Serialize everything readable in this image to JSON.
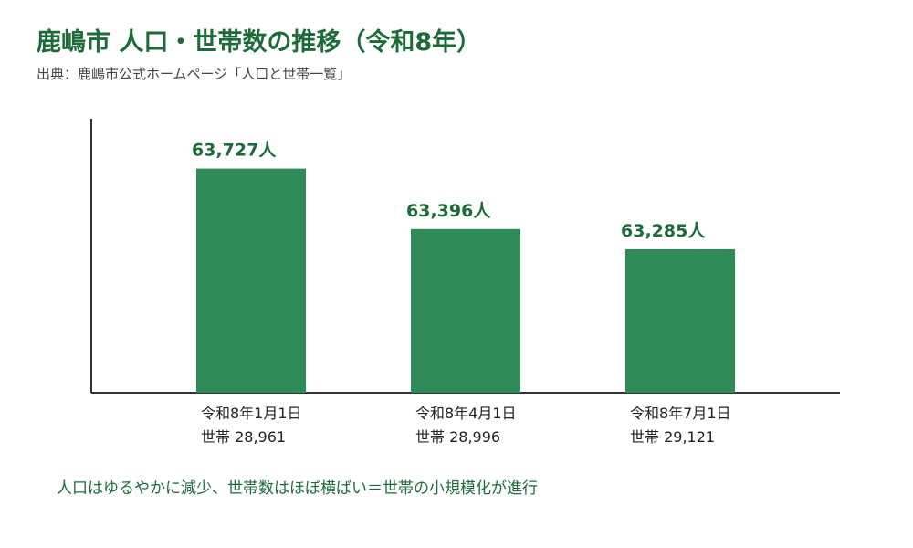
{
  "header": {
    "title": "鹿嶋市 人口・世帯数の推移（令和8年）",
    "source": "出典：鹿嶋市公式ホームページ「人口と世帯一覧」"
  },
  "chart_data": {
    "type": "bar",
    "title": "鹿嶋市 人口・世帯数の推移（令和8年）",
    "categories": [
      "令和8年1月1日",
      "令和8年4月1日",
      "令和8年7月1日"
    ],
    "series": [
      {
        "values": [
          63727,
          63396,
          63285
        ]
      }
    ],
    "value_labels": [
      "63,727人",
      "63,396人",
      "63,285人"
    ],
    "households": [
      "世帯 28,961",
      "世帯 28,996",
      "世帯 29,121"
    ],
    "ylim": [
      62500,
      64000
    ],
    "xlabel": "",
    "ylabel": "",
    "grid": false,
    "legend": "none",
    "bar_color": "#2e8b57",
    "label_color": "#1e6b3a"
  },
  "note": "人口はゆるやかに減少、世帯数はほぼ横ばい＝世帯の小規模化が進行"
}
